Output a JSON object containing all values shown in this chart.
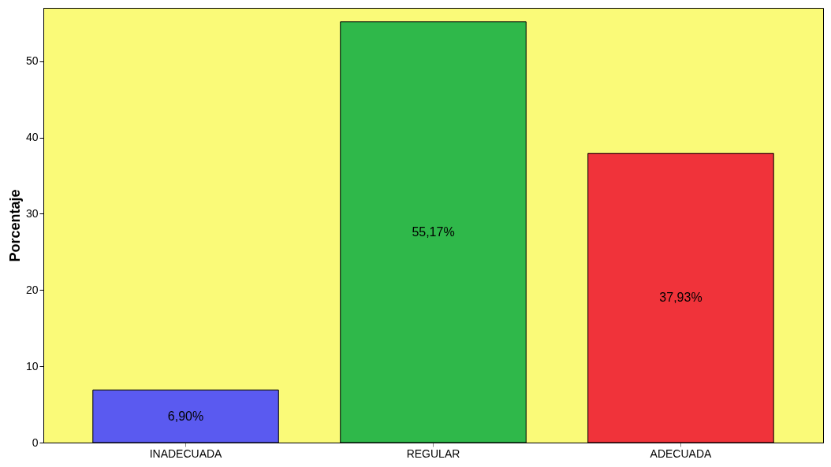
{
  "chart_data": {
    "type": "bar",
    "ylabel": "Porcentaje",
    "categories": [
      "INADECUADA",
      "REGULAR",
      "ADECUADA"
    ],
    "values": [
      6.9,
      55.17,
      37.93
    ],
    "colors": [
      "#5a5af0",
      "#2fb84a",
      "#f0333a"
    ],
    "value_labels": [
      "6,90%",
      "55,17%",
      "37,93%"
    ],
    "ylim": [
      0,
      57
    ],
    "yticks": [
      0,
      10,
      20,
      30,
      40,
      50
    ],
    "grid": false
  }
}
